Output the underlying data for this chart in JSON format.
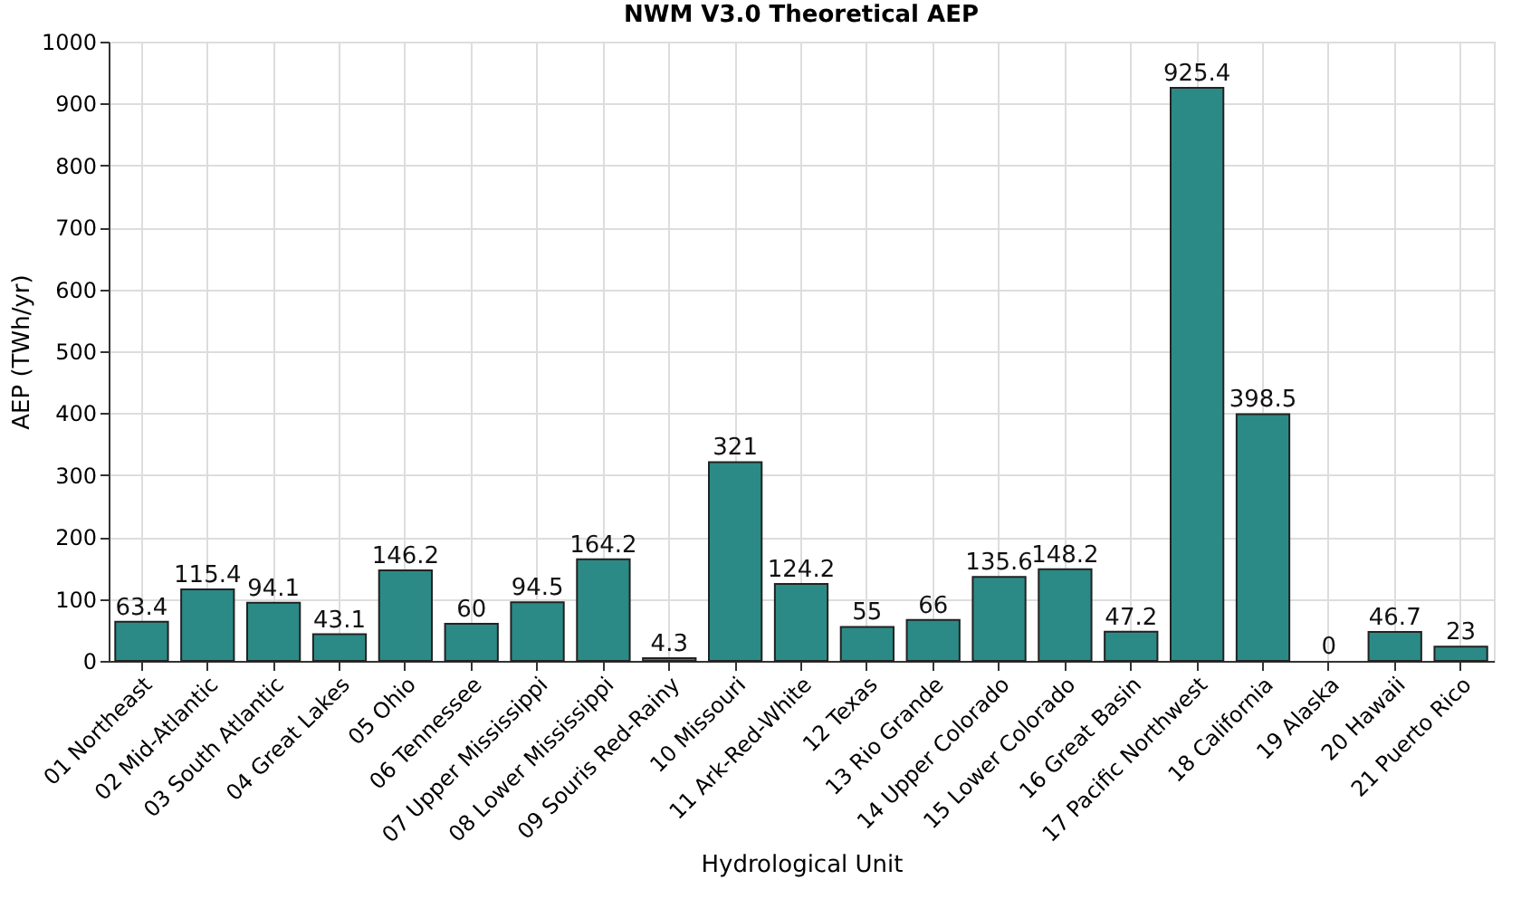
{
  "chart_data": {
    "type": "bar",
    "title": "NWM V3.0 Theoretical AEP",
    "xlabel": "Hydrological Unit",
    "ylabel": "AEP (TWh/yr)",
    "categories": [
      "01 Northeast",
      "02 Mid-Atlantic",
      "03 South Atlantic",
      "04 Great Lakes",
      "05 Ohio",
      "06 Tennessee",
      "07 Upper Mississippi",
      "08 Lower Mississippi",
      "09 Souris Red-Rainy",
      "10 Missouri",
      "11 Ark-Red-White",
      "12 Texas",
      "13 Rio Grande",
      "14 Upper Colorado",
      "15 Lower Colorado",
      "16 Great Basin",
      "17 Pacific Northwest",
      "18 California",
      "19 Alaska",
      "20 Hawaii",
      "21 Puerto Rico"
    ],
    "values": [
      63.4,
      115.4,
      94.1,
      43.1,
      146.2,
      60,
      94.5,
      164.2,
      4.3,
      321,
      124.2,
      55,
      66,
      135.6,
      148.2,
      47.2,
      925.4,
      398.5,
      0,
      46.7,
      23
    ],
    "color": "#2b8a86",
    "ylim": [
      0,
      1000
    ],
    "yticks": [
      0,
      100,
      200,
      300,
      400,
      500,
      600,
      700,
      800,
      900,
      1000
    ],
    "grid": true,
    "data_labels": true
  }
}
